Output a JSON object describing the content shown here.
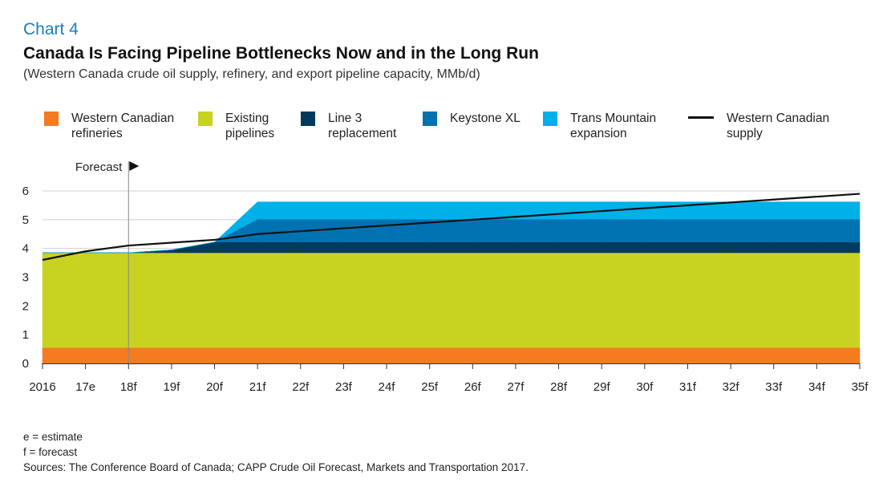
{
  "header": {
    "chart_number": "Chart 4",
    "title": "Canada Is Facing Pipeline Bottlenecks Now and in the Long Run",
    "subtitle": "(Western Canada crude oil supply, refinery, and export pipeline capacity, MMb/d)"
  },
  "legend": [
    {
      "label": "Western Canadian\nrefineries",
      "color": "#f47b20",
      "kind": "swatch"
    },
    {
      "label": "Existing\npipelines",
      "color": "#c8d321",
      "kind": "swatch"
    },
    {
      "label": "Line 3\nreplacement",
      "color": "#003a5d",
      "kind": "swatch"
    },
    {
      "label": "Keystone XL",
      "color": "#0072b2",
      "kind": "swatch"
    },
    {
      "label": "Trans Mountain\nexpansion",
      "color": "#00b0e8",
      "kind": "swatch"
    },
    {
      "label": "Western Canadian\nsupply",
      "color": "#111111",
      "kind": "line"
    }
  ],
  "chart_data": {
    "type": "area",
    "x": [
      "2016",
      "17e",
      "18f",
      "19f",
      "20f",
      "21f",
      "22f",
      "23f",
      "24f",
      "25f",
      "26f",
      "27f",
      "28f",
      "29f",
      "30f",
      "31f",
      "32f",
      "33f",
      "34f",
      "35f"
    ],
    "ylim": [
      0,
      6
    ],
    "yticks": [
      0,
      1,
      2,
      3,
      4,
      5,
      6
    ],
    "grid": true,
    "forecast_marker": {
      "label": "Forecast",
      "x": "18f"
    },
    "stacked_series": [
      {
        "name": "Western Canadian refineries",
        "color": "#f47b20",
        "values": [
          0.55,
          0.55,
          0.55,
          0.55,
          0.55,
          0.55,
          0.55,
          0.55,
          0.55,
          0.55,
          0.55,
          0.55,
          0.55,
          0.55,
          0.55,
          0.55,
          0.55,
          0.55,
          0.55,
          0.55
        ]
      },
      {
        "name": "Existing pipelines",
        "color": "#c8d321",
        "values": [
          3.3,
          3.3,
          3.3,
          3.3,
          3.3,
          3.3,
          3.3,
          3.3,
          3.3,
          3.3,
          3.3,
          3.3,
          3.3,
          3.3,
          3.3,
          3.3,
          3.3,
          3.3,
          3.3,
          3.3
        ]
      },
      {
        "name": "Line 3 replacement",
        "color": "#003a5d",
        "values": [
          0,
          0,
          0,
          0.1,
          0.37,
          0.37,
          0.37,
          0.37,
          0.37,
          0.37,
          0.37,
          0.37,
          0.37,
          0.37,
          0.37,
          0.37,
          0.37,
          0.37,
          0.37,
          0.37
        ]
      },
      {
        "name": "Keystone XL",
        "color": "#0072b2",
        "values": [
          0,
          0,
          0,
          0,
          0,
          0.8,
          0.8,
          0.8,
          0.8,
          0.8,
          0.8,
          0.8,
          0.8,
          0.8,
          0.8,
          0.8,
          0.8,
          0.8,
          0.8,
          0.8
        ]
      },
      {
        "name": "Trans Mountain expansion",
        "color": "#00b0e8",
        "values": [
          0,
          0,
          0,
          0,
          0,
          0.6,
          0.6,
          0.6,
          0.6,
          0.6,
          0.6,
          0.6,
          0.6,
          0.6,
          0.6,
          0.6,
          0.6,
          0.6,
          0.6,
          0.6
        ]
      }
    ],
    "line_series": [
      {
        "name": "Western Canadian supply",
        "color": "#111111",
        "values": [
          3.6,
          3.9,
          4.1,
          4.2,
          4.3,
          4.5,
          4.6,
          4.7,
          4.8,
          4.9,
          5.0,
          5.1,
          5.2,
          5.3,
          5.4,
          5.5,
          5.6,
          5.7,
          5.8,
          5.9
        ]
      }
    ]
  },
  "notes": {
    "estimate": "e = estimate",
    "forecast": "f = forecast",
    "sources": "Sources: The Conference Board of Canada; CAPP Crude Oil Forecast, Markets and Transportation 2017."
  }
}
